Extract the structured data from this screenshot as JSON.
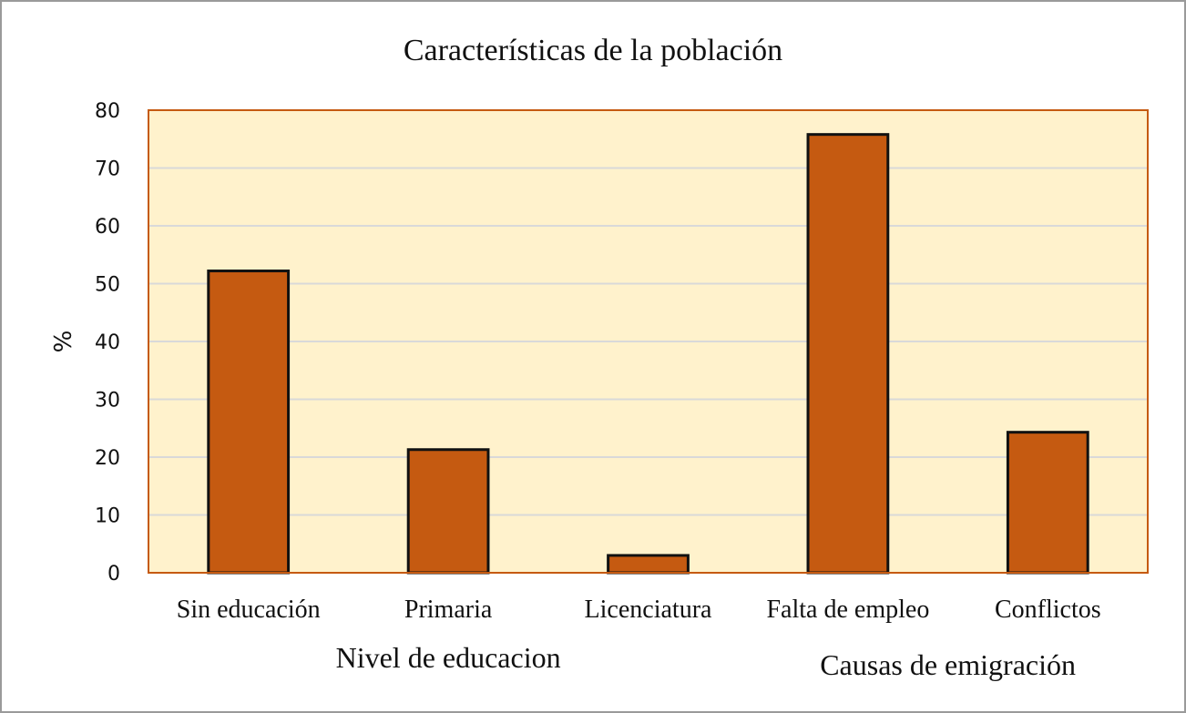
{
  "chart_data": {
    "type": "bar",
    "title": "Características de la población",
    "ylabel": "%",
    "ylim": [
      0,
      80
    ],
    "yticks": [
      0,
      10,
      20,
      30,
      40,
      50,
      60,
      70,
      80
    ],
    "categories": [
      "Sin educación",
      "Primaria",
      "Licenciatura",
      "Falta de empleo",
      "Conflictos"
    ],
    "values": [
      52.2,
      21.3,
      3,
      75.8,
      24.3
    ],
    "groups": [
      {
        "label": "Nivel de educacion",
        "categories": [
          "Sin educación",
          "Primaria",
          "Licenciatura"
        ]
      },
      {
        "label": "Causas de emigración",
        "categories": [
          "Falta de empleo",
          "Conflictos"
        ]
      }
    ],
    "grid": true,
    "legend": "none",
    "colors": {
      "bar": "#c55a11",
      "bar_edge": "#111111",
      "plot_bg": "#fff2cc",
      "plot_border": "#c55a11",
      "grid": "#d9d9d9"
    }
  }
}
